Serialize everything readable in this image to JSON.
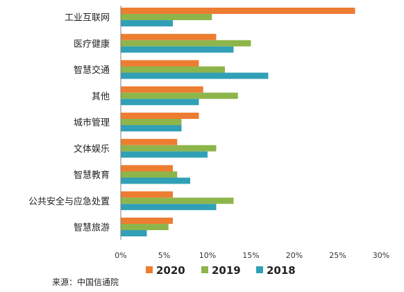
{
  "chart_data": {
    "type": "bar",
    "orientation": "horizontal",
    "categories": [
      "工业互联网",
      "医疗健康",
      "智慧交通",
      "其他",
      "城市管理",
      "文体娱乐",
      "智慧教育",
      "公共安全与应急处置",
      "智慧旅游"
    ],
    "series": [
      {
        "name": "2020",
        "color": "#ED7D31",
        "values": [
          27,
          11,
          9,
          9.5,
          9,
          6.5,
          6,
          6,
          6
        ]
      },
      {
        "name": "2019",
        "color": "#8DB54B",
        "values": [
          10.5,
          15,
          12,
          13.5,
          7,
          11,
          6.5,
          13,
          5.5
        ]
      },
      {
        "name": "2018",
        "color": "#31A0B6",
        "values": [
          6,
          13,
          17,
          9,
          7,
          10,
          8,
          11,
          3
        ]
      }
    ],
    "x_ticks": [
      "0%",
      "5%",
      "10%",
      "15%",
      "20%",
      "25%",
      "30%"
    ],
    "xlim": [
      0,
      30
    ],
    "grid": false,
    "legend_placement": "bottom"
  },
  "source_note": "来源：中国信通院"
}
